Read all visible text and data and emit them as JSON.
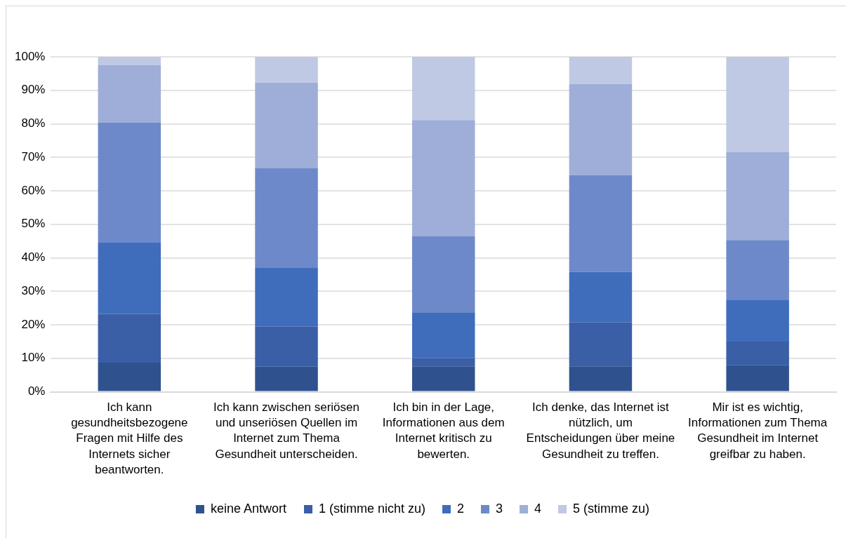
{
  "chart_data": {
    "type": "bar",
    "stacked": true,
    "categories": [
      "Ich kann gesundheitsbezogene Fragen mit Hilfe des Internets sicher beantworten.",
      "Ich kann zwischen seriösen und unseriösen Quellen im Internet zum Thema Gesundheit unterscheiden.",
      "Ich bin in der Lage, Informationen aus dem Internet kritisch zu bewerten.",
      "Ich denke, das Internet ist nützlich, um Entscheidungen über meine Gesundheit zu treffen.",
      "Mir ist es wichtig, Informationen zum Thema Gesundheit im Internet greifbar zu haben."
    ],
    "series": [
      {
        "name": "keine Antwort",
        "color": "#2f528f",
        "values": [
          8.7,
          7.5,
          7.6,
          7.6,
          8.0
        ]
      },
      {
        "name": "1 (stimme nicht zu)",
        "color": "#3a5fa6",
        "values": [
          14.5,
          11.9,
          2.4,
          13.1,
          7.0
        ]
      },
      {
        "name": "2",
        "color": "#3f6dbb",
        "values": [
          21.3,
          17.7,
          13.7,
          15.1,
          12.5
        ]
      },
      {
        "name": "3",
        "color": "#6e89ca",
        "values": [
          35.9,
          29.6,
          22.7,
          28.9,
          17.8
        ]
      },
      {
        "name": "4",
        "color": "#9faed8",
        "values": [
          17.2,
          25.6,
          34.7,
          27.2,
          26.3
        ]
      },
      {
        "name": "5 (stimme zu)",
        "color": "#bfc9e3",
        "values": [
          2.4,
          7.7,
          18.9,
          8.1,
          28.4
        ]
      }
    ],
    "ylim": [
      0,
      100
    ],
    "yticks": [
      {
        "value": 0,
        "label": "0%"
      },
      {
        "value": 10,
        "label": "10%"
      },
      {
        "value": 20,
        "label": "20%"
      },
      {
        "value": 30,
        "label": "30%"
      },
      {
        "value": 40,
        "label": "40%"
      },
      {
        "value": 50,
        "label": "50%"
      },
      {
        "value": 60,
        "label": "60%"
      },
      {
        "value": 70,
        "label": "70%"
      },
      {
        "value": 80,
        "label": "80%"
      },
      {
        "value": 90,
        "label": "90%"
      },
      {
        "value": 100,
        "label": "100%"
      }
    ],
    "grid": "y",
    "legend": "bottom"
  }
}
